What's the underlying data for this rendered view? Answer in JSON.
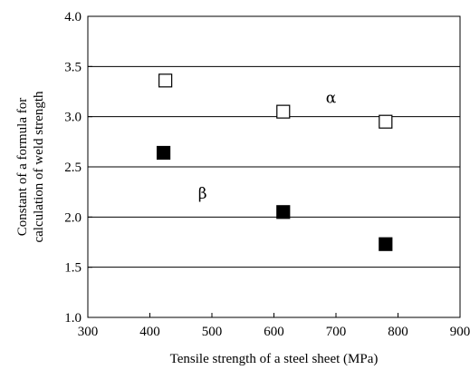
{
  "chart_data": {
    "type": "scatter",
    "title": "",
    "xlabel": "Tensile strength of a steel sheet (MPa)",
    "ylabel_lines": [
      "Constant of a formula for",
      "calculation of weld strength"
    ],
    "xlim": [
      300,
      900
    ],
    "ylim": [
      1.0,
      4.0
    ],
    "x_ticks": [
      300,
      400,
      500,
      600,
      700,
      800,
      900
    ],
    "y_ticks": [
      "1.0",
      "1.5",
      "2.0",
      "2.5",
      "3.0",
      "3.5",
      "4.0"
    ],
    "grid": "horizontal",
    "series": [
      {
        "name": "α",
        "marker": "open-square",
        "color": "#000000",
        "points": [
          {
            "x": 425,
            "y": 3.36
          },
          {
            "x": 615,
            "y": 3.05
          },
          {
            "x": 780,
            "y": 2.95
          }
        ]
      },
      {
        "name": "β",
        "marker": "filled-square",
        "color": "#000000",
        "points": [
          {
            "x": 422,
            "y": 2.64
          },
          {
            "x": 615,
            "y": 2.05
          },
          {
            "x": 780,
            "y": 1.73
          }
        ]
      }
    ],
    "annotations": [
      {
        "text": "α",
        "x": 692,
        "y": 3.19
      },
      {
        "text": "β",
        "x": 485,
        "y": 2.24
      }
    ]
  }
}
